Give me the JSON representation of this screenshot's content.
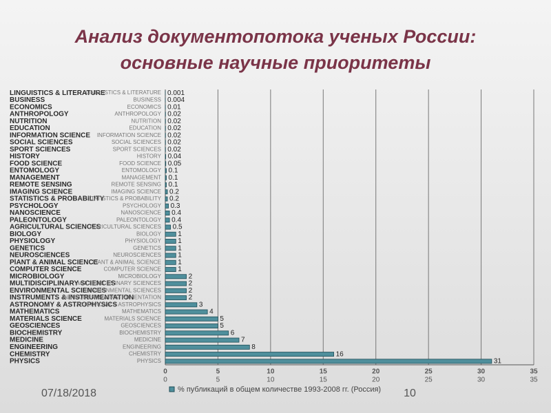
{
  "chart_data": {
    "type": "barh",
    "title": [
      "Анализ документопотока ученых России:",
      "основные научные приоритеты"
    ],
    "categories": [
      "LINGUISTICS & LITERATURE",
      "BUSINESS",
      "ECONOMICS",
      "ANTHROPOLOGY",
      "NUTRITION",
      "EDUCATION",
      "INFORMATION SCIENCE",
      "SOCIAL SCIENCES",
      "SPORT SCIENCES",
      "HISTORY",
      "FOOD SCIENCE",
      "ENTOMOLOGY",
      "MANAGEMENT",
      "REMOTE SENSING",
      "IMAGING SCIENCE",
      "STATISTICS & PROBABILITY",
      "PSYCHOLOGY",
      "NANOSCIENCE",
      "PALEONTOLOGY",
      "AGRICULTURAL SCIENCES",
      "BIOLOGY",
      "PHYSIOLOGY",
      "GENETICS",
      "NEUROSCIENCES",
      "PlANT & ANIMAL SCIENCE",
      "COMPUTER SCIENCE",
      "MICROBIOLOGY",
      "MULTIDISCIPLINARY SCIENCES",
      "ENVIRONMENTAL SCIENCES",
      "INSTRUMENTS & INSTRUMENTATION",
      "ASTRONOMY & ASTROPHYSICS",
      "MATHEMATICS",
      "MATERIALS SCIENCE",
      "GEOSCIENCES",
      "BIOCHEMISTRY",
      "MEDICINE",
      "ENGINEERING",
      "CHEMISTRY",
      "PHYSICS"
    ],
    "series": [
      {
        "name": "% публикаций в общем количестве 1993-2008 гг. (Россия)",
        "color": "#4f8f9c",
        "values": [
          0.001,
          0.004,
          0.01,
          0.02,
          0.02,
          0.02,
          0.02,
          0.02,
          0.02,
          0.04,
          0.05,
          0.1,
          0.1,
          0.1,
          0.2,
          0.2,
          0.3,
          0.4,
          0.4,
          0.5,
          1,
          1,
          1,
          1,
          1,
          1,
          2,
          2,
          2,
          2,
          3,
          4,
          5,
          5,
          6,
          7,
          8,
          16,
          31
        ]
      }
    ],
    "xlim": [
      0,
      35
    ],
    "xticks": [
      0,
      5,
      10,
      15,
      20,
      25,
      30,
      35
    ],
    "grid": true
  },
  "footer": {
    "date": "07/18/2018",
    "page": "10"
  }
}
